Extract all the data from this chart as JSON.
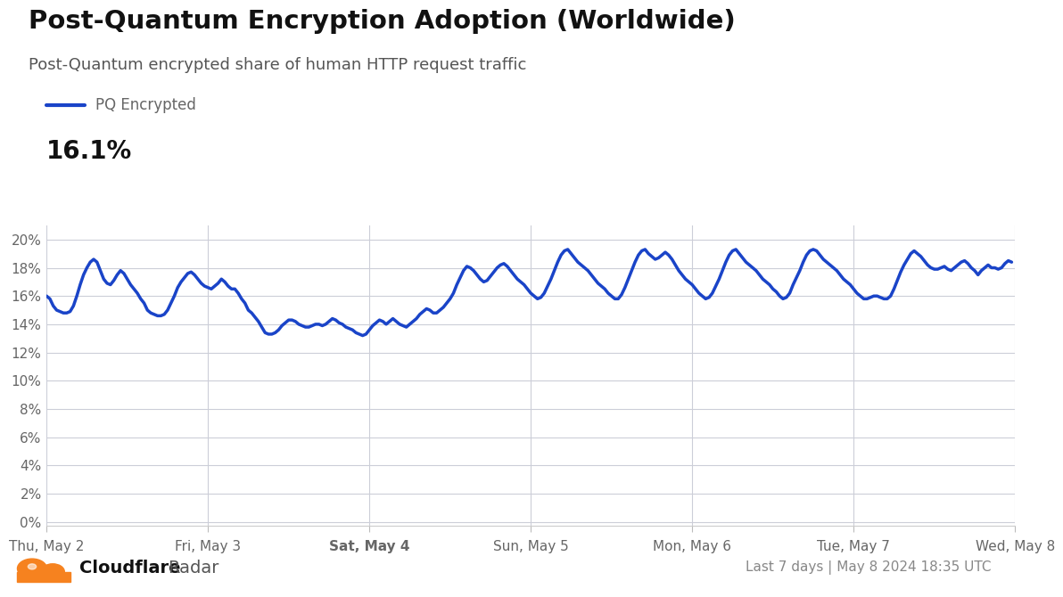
{
  "title": "Post-Quantum Encryption Adoption (Worldwide)",
  "subtitle": "Post-Quantum encrypted share of human HTTP request traffic",
  "legend_label": "PQ Encrypted",
  "current_value": "16.1%",
  "footer_right": "Last 7 days | May 8 2024 18:35 UTC",
  "line_color": "#1a44c8",
  "line_width": 2.5,
  "background_color": "#ffffff",
  "grid_color": "#ccced8",
  "axis_label_color": "#666666",
  "title_color": "#111111",
  "subtitle_color": "#555555",
  "yticks": [
    0,
    2,
    4,
    6,
    8,
    10,
    12,
    14,
    16,
    18,
    20
  ],
  "ylim": [
    -0.3,
    21
  ],
  "x_tick_labels": [
    "Thu, May 2",
    "Fri, May 3",
    "Sat, May 4",
    "Sun, May 5",
    "Mon, May 6",
    "Tue, May 7",
    "Wed, May 8"
  ],
  "x_tick_positions": [
    0,
    48,
    96,
    144,
    192,
    240,
    288
  ],
  "cloudflare_orange": "#f6821f",
  "y_data": [
    16.0,
    15.8,
    15.3,
    15.0,
    14.9,
    14.8,
    14.8,
    14.9,
    15.3,
    16.0,
    16.8,
    17.5,
    18.0,
    18.4,
    18.6,
    18.4,
    17.8,
    17.2,
    16.9,
    16.8,
    17.1,
    17.5,
    17.8,
    17.6,
    17.2,
    16.8,
    16.5,
    16.2,
    15.8,
    15.5,
    15.0,
    14.8,
    14.7,
    14.6,
    14.6,
    14.7,
    15.0,
    15.5,
    16.0,
    16.6,
    17.0,
    17.3,
    17.6,
    17.7,
    17.5,
    17.2,
    16.9,
    16.7,
    16.6,
    16.5,
    16.7,
    16.9,
    17.2,
    17.0,
    16.7,
    16.5,
    16.5,
    16.2,
    15.8,
    15.5,
    15.0,
    14.8,
    14.5,
    14.2,
    13.8,
    13.4,
    13.3,
    13.3,
    13.4,
    13.6,
    13.9,
    14.1,
    14.3,
    14.3,
    14.2,
    14.0,
    13.9,
    13.8,
    13.8,
    13.9,
    14.0,
    14.0,
    13.9,
    14.0,
    14.2,
    14.4,
    14.3,
    14.1,
    14.0,
    13.8,
    13.7,
    13.6,
    13.4,
    13.3,
    13.2,
    13.3,
    13.6,
    13.9,
    14.1,
    14.3,
    14.2,
    14.0,
    14.2,
    14.4,
    14.2,
    14.0,
    13.9,
    13.8,
    14.0,
    14.2,
    14.4,
    14.7,
    14.9,
    15.1,
    15.0,
    14.8,
    14.8,
    15.0,
    15.2,
    15.5,
    15.8,
    16.2,
    16.8,
    17.3,
    17.8,
    18.1,
    18.0,
    17.8,
    17.5,
    17.2,
    17.0,
    17.1,
    17.4,
    17.7,
    18.0,
    18.2,
    18.3,
    18.1,
    17.8,
    17.5,
    17.2,
    17.0,
    16.8,
    16.5,
    16.2,
    16.0,
    15.8,
    15.9,
    16.2,
    16.7,
    17.2,
    17.8,
    18.4,
    18.9,
    19.2,
    19.3,
    19.0,
    18.7,
    18.4,
    18.2,
    18.0,
    17.8,
    17.5,
    17.2,
    16.9,
    16.7,
    16.5,
    16.2,
    16.0,
    15.8,
    15.8,
    16.1,
    16.6,
    17.2,
    17.8,
    18.4,
    18.9,
    19.2,
    19.3,
    19.0,
    18.8,
    18.6,
    18.7,
    18.9,
    19.1,
    18.9,
    18.6,
    18.2,
    17.8,
    17.5,
    17.2,
    17.0,
    16.8,
    16.5,
    16.2,
    16.0,
    15.8,
    15.9,
    16.2,
    16.7,
    17.2,
    17.8,
    18.4,
    18.9,
    19.2,
    19.3,
    19.0,
    18.7,
    18.4,
    18.2,
    18.0,
    17.8,
    17.5,
    17.2,
    17.0,
    16.8,
    16.5,
    16.3,
    16.0,
    15.8,
    15.9,
    16.2,
    16.8,
    17.3,
    17.8,
    18.4,
    18.9,
    19.2,
    19.3,
    19.2,
    18.9,
    18.6,
    18.4,
    18.2,
    18.0,
    17.8,
    17.5,
    17.2,
    17.0,
    16.8,
    16.5,
    16.2,
    16.0,
    15.8,
    15.8,
    15.9,
    16.0,
    16.0,
    15.9,
    15.8,
    15.8,
    16.0,
    16.5,
    17.1,
    17.7,
    18.2,
    18.6,
    19.0,
    19.2,
    19.0,
    18.8,
    18.5,
    18.2,
    18.0,
    17.9,
    17.9,
    18.0,
    18.1,
    17.9,
    17.8,
    18.0,
    18.2,
    18.4,
    18.5,
    18.3,
    18.0,
    17.8,
    17.5,
    17.8,
    18.0,
    18.2,
    18.0,
    18.0,
    17.9,
    18.0,
    18.3,
    18.5,
    18.4
  ]
}
